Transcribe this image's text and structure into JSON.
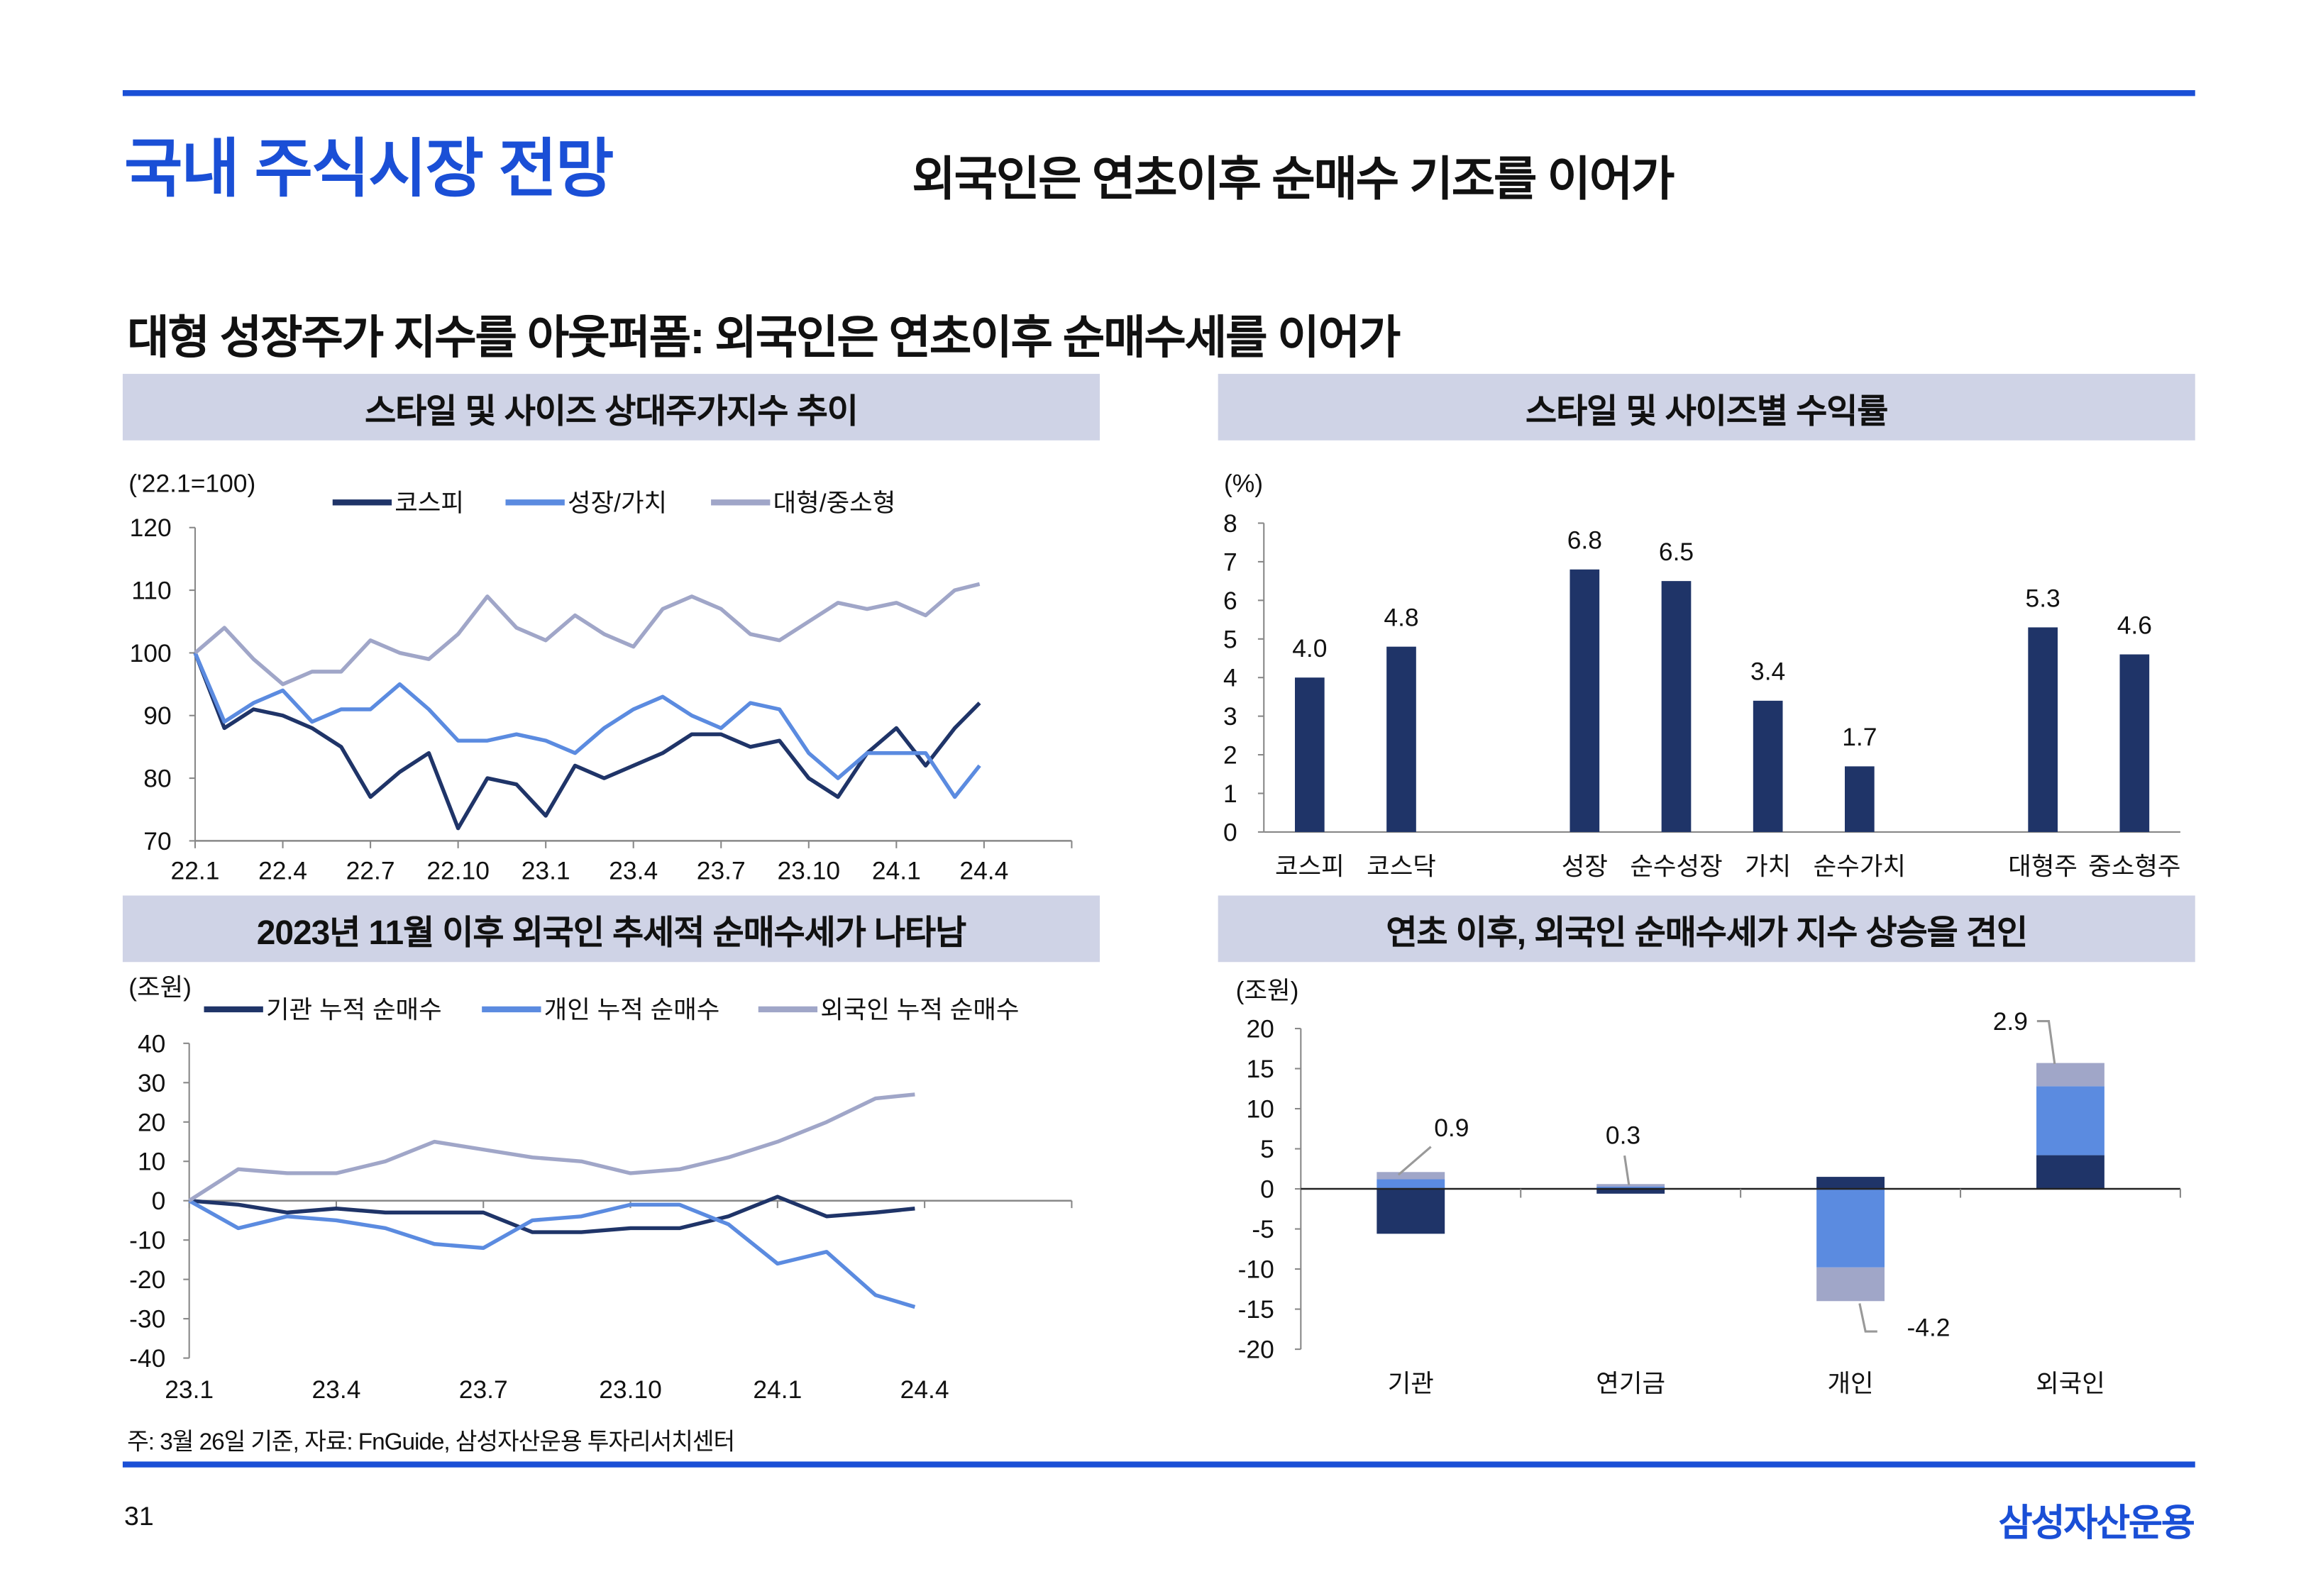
{
  "header": {
    "title": "국내 주식시장 전망",
    "subtitle": "외국인은 연초이후 순매수 기조를 이어가"
  },
  "section_heading": "대형 성장주가 지수를 아웃퍼폼: 외국인은 연초이후 순매수세를 이어가",
  "panels": {
    "top_left": "스타일 및 사이즈 상대주가지수 추이",
    "top_right": "스타일 및 사이즈별 수익률",
    "bottom_left": "2023년 11월 이후 외국인 추세적 순매수세가 나타남",
    "bottom_right": "연초 이후, 외국인 순매수세가 지수 상승을 견인"
  },
  "footnote": "주: 3월 26일 기준, 자료: FnGuide, 삼성자산운용 투자리서치센터",
  "page_number": "31",
  "logo_text": "삼성자산운용",
  "colors": {
    "brand": "#1a4fd6",
    "dark": "#1f3468",
    "blue": "#5b8be0",
    "gray": "#a0a6c8",
    "panel": "#cfd3e6"
  },
  "chart_data": [
    {
      "type": "line",
      "title": "스타일 및 사이즈 상대주가지수 추이",
      "unit_label": "('22.1=100)",
      "ylim": [
        70,
        120
      ],
      "yticks": [
        "70",
        "80",
        "90",
        "100",
        "110",
        "120"
      ],
      "xticks": [
        "22.1",
        "22.4",
        "22.7",
        "22.10",
        "23.1",
        "23.4",
        "23.7",
        "23.10",
        "24.1",
        "24.4"
      ],
      "x_months_range": [
        0,
        30
      ],
      "x": [
        0,
        1,
        2,
        3,
        4,
        5,
        6,
        7,
        8,
        9,
        10,
        11,
        12,
        13,
        14,
        15,
        16,
        17,
        18,
        19,
        20,
        21,
        22,
        23,
        24,
        25,
        26,
        26.85
      ],
      "series": [
        {
          "name": "코스피",
          "color": "#1f3468",
          "values": [
            100,
            88,
            91,
            90,
            88,
            85,
            77,
            81,
            84,
            72,
            80,
            79,
            74,
            82,
            80,
            82,
            84,
            87,
            87,
            85,
            86,
            80,
            77,
            84,
            88,
            82,
            88,
            92
          ]
        },
        {
          "name": "성장/가치",
          "color": "#5b8be0",
          "values": [
            100,
            89,
            92,
            94,
            89,
            91,
            91,
            95,
            91,
            86,
            86,
            87,
            86,
            84,
            88,
            91,
            93,
            90,
            88,
            92,
            91,
            84,
            80,
            84,
            84,
            84,
            77,
            82
          ]
        },
        {
          "name": "대형/중소형",
          "color": "#a0a6c8",
          "values": [
            100,
            104,
            99,
            95,
            97,
            97,
            102,
            100,
            99,
            103,
            109,
            104,
            102,
            106,
            103,
            101,
            107,
            109,
            107,
            103,
            102,
            105,
            108,
            107,
            108,
            106,
            110,
            111
          ]
        }
      ],
      "legend": "top"
    },
    {
      "type": "bar",
      "title": "스타일 및 사이즈별 수익률",
      "unit_label": "(%)",
      "ylim": [
        0,
        8
      ],
      "yticks": [
        "0",
        "1",
        "2",
        "3",
        "4",
        "5",
        "6",
        "7",
        "8"
      ],
      "groups": [
        [
          0,
          1
        ],
        [
          2,
          3,
          4,
          5
        ],
        [
          6,
          7
        ]
      ],
      "categories": [
        "코스피",
        "코스닥",
        "성장",
        "순수성장",
        "가치",
        "순수가치",
        "대형주",
        "중소형주"
      ],
      "values": [
        4.0,
        4.8,
        6.8,
        6.5,
        3.4,
        1.7,
        5.3,
        4.6
      ],
      "value_labels": [
        "4.0",
        "4.8",
        "6.8",
        "6.5",
        "3.4",
        "1.7",
        "5.3",
        "4.6"
      ],
      "color": "#1f3468"
    },
    {
      "type": "line",
      "title": "2023년 11월 이후 외국인 추세적 순매수세가 나타남",
      "unit_label": "(조원)",
      "ylim": [
        -40,
        40
      ],
      "yticks": [
        "-40",
        "-30",
        "-20",
        "-10",
        "0",
        "10",
        "20",
        "30",
        "40"
      ],
      "xticks": [
        "23.1",
        "23.4",
        "23.7",
        "23.10",
        "24.1",
        "24.4"
      ],
      "x_months_range": [
        0,
        18
      ],
      "x": [
        0,
        1,
        2,
        3,
        4,
        5,
        6,
        7,
        8,
        9,
        10,
        11,
        12,
        13,
        14,
        14.8
      ],
      "series": [
        {
          "name": "기관 누적 순매수",
          "color": "#1f3468",
          "values": [
            0,
            -1,
            -3,
            -2,
            -3,
            -3,
            -3,
            -8,
            -8,
            -7,
            -7,
            -4,
            1,
            -4,
            -3,
            -2
          ]
        },
        {
          "name": "개인 누적 순매수",
          "color": "#5b8be0",
          "values": [
            0,
            -7,
            -4,
            -5,
            -7,
            -11,
            -12,
            -5,
            -4,
            -1,
            -1,
            -6,
            -16,
            -13,
            -24,
            -27
          ]
        },
        {
          "name": "외국인 누적 순매수",
          "color": "#a0a6c8",
          "values": [
            0,
            8,
            7,
            7,
            10,
            15,
            13,
            11,
            10,
            7,
            8,
            11,
            15,
            20,
            26,
            27
          ]
        }
      ],
      "legend": "top"
    },
    {
      "type": "bar",
      "stacked": true,
      "title": "연초 이후, 외국인 순매수세가 지수 상승을 견인",
      "unit_label": "(조원)",
      "ylim": [
        -20,
        20
      ],
      "yticks": [
        "-20",
        "-15",
        "-10",
        "-5",
        "0",
        "5",
        "10",
        "15",
        "20"
      ],
      "categories": [
        "기관",
        "연기금",
        "개인",
        "외국인"
      ],
      "series": [
        {
          "color": "#1f3468",
          "values": [
            -5.6,
            -0.6,
            1.5,
            4.2
          ]
        },
        {
          "color": "#5b8be0",
          "values": [
            1.2,
            0.3,
            -9.8,
            8.6
          ]
        },
        {
          "color": "#a0a6c8",
          "values": [
            0.9,
            0.3,
            -4.2,
            2.9
          ]
        }
      ],
      "annotations": [
        "0.9",
        "0.3",
        "-4.2",
        "2.9"
      ]
    }
  ]
}
